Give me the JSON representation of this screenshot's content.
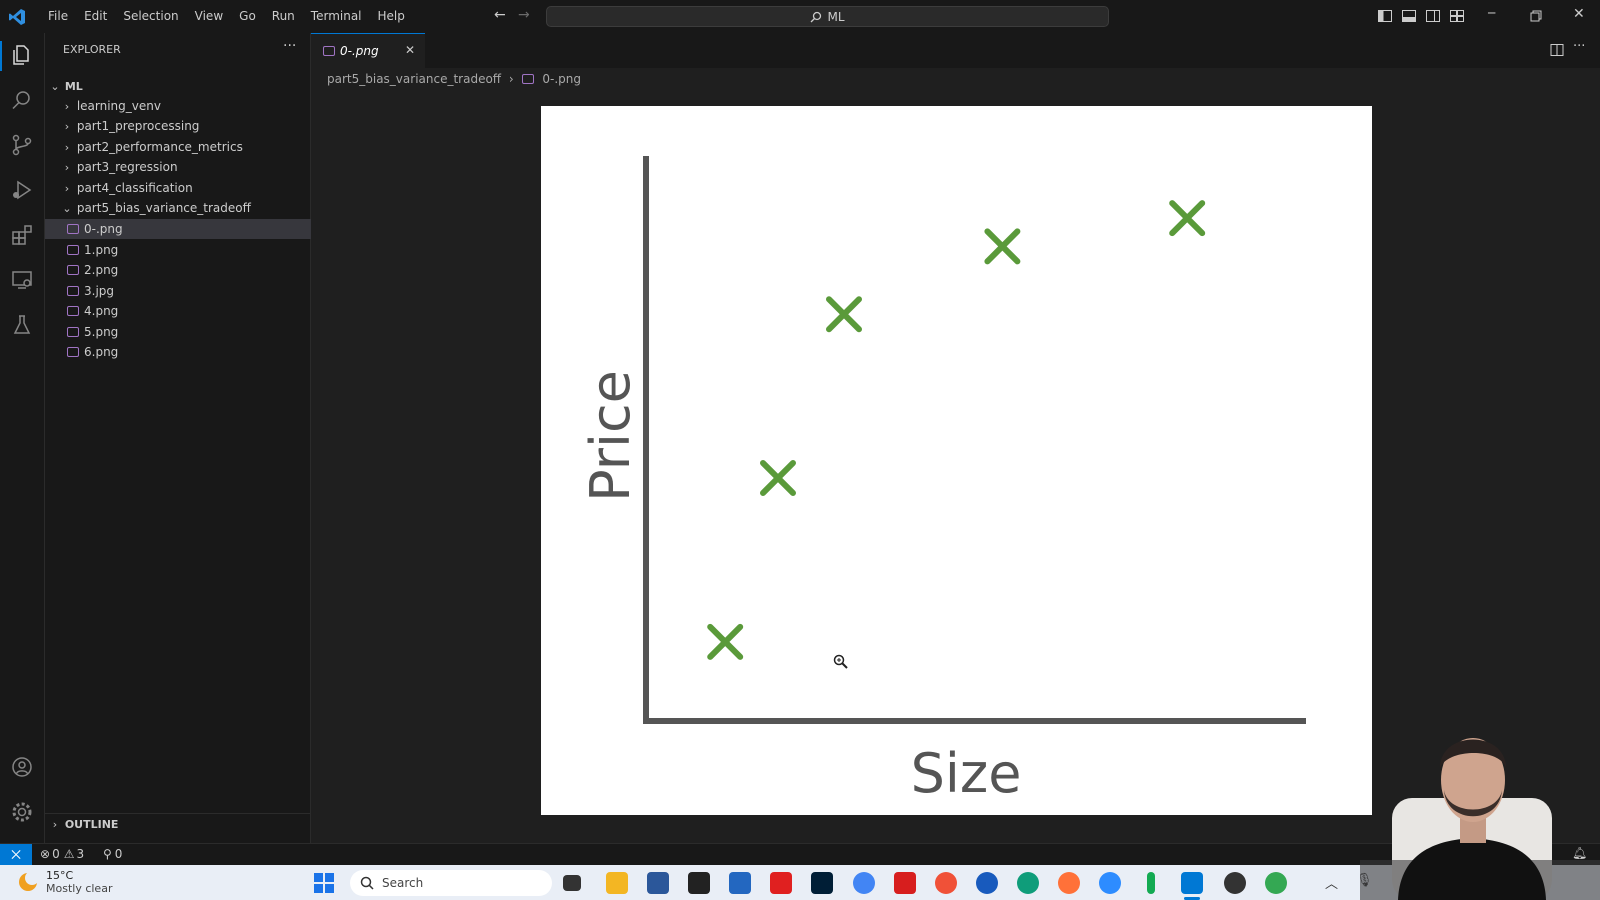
{
  "titlebar": {
    "menu": [
      "File",
      "Edit",
      "Selection",
      "View",
      "Go",
      "Run",
      "Terminal",
      "Help"
    ],
    "search_text": "ML"
  },
  "sidebar": {
    "header": "EXPLORER",
    "root": "ML",
    "folders": [
      "learning_venv",
      "part1_preprocessing",
      "part2_performance_metrics",
      "part3_regression",
      "part4_classification",
      "part5_bias_variance_tradeoff"
    ],
    "files": [
      "0-.png",
      "1.png",
      "2.png",
      "3.jpg",
      "4.png",
      "5.png",
      "6.png"
    ],
    "outline": "OUTLINE"
  },
  "editor": {
    "tab_label": "0-.png",
    "breadcrumb_folder": "part5_bias_variance_tradeoff",
    "breadcrumb_file": "0-.png"
  },
  "statusbar": {
    "errors": "0",
    "warnings": "3",
    "ports": "0"
  },
  "taskbar": {
    "weather_temp": "15°C",
    "weather_desc": "Mostly clear",
    "search_placeholder": "Search"
  },
  "chart_data": {
    "type": "scatter",
    "xlabel": "Size",
    "ylabel": "Price",
    "points": [
      {
        "x": 1.2,
        "y": 1.4
      },
      {
        "x": 2.0,
        "y": 4.3
      },
      {
        "x": 3.0,
        "y": 7.2
      },
      {
        "x": 5.4,
        "y": 8.4
      },
      {
        "x": 8.2,
        "y": 8.9
      }
    ],
    "xlim": [
      0,
      10
    ],
    "ylim": [
      0,
      10
    ],
    "marker_color": "#5a9a3a",
    "grid": false
  }
}
